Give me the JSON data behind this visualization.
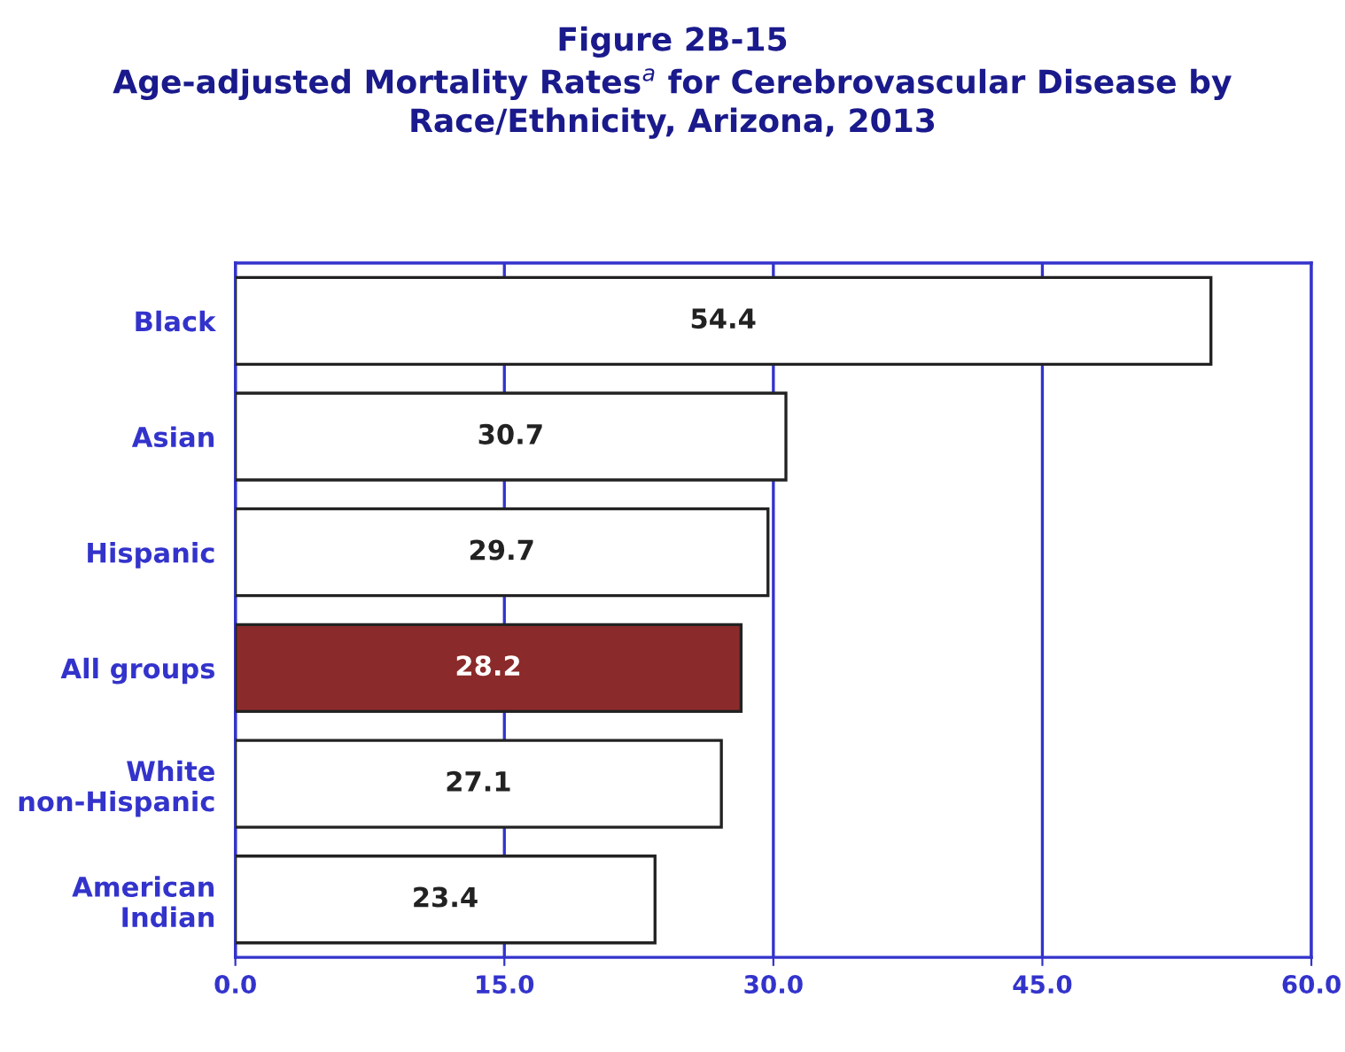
{
  "chart_data": {
    "type": "bar",
    "orientation": "horizontal",
    "title": "Figure 2B-15",
    "subtitle": "Age-adjusted Mortality Rates$^{a}$ for Cerebrovascular Disease by Race/Ethnicity, Arizona, 2013",
    "categories": [
      "Black",
      "Asian",
      "Hispanic",
      "All groups",
      "White\nnon-Hispanic",
      "American\nIndian"
    ],
    "values": [
      54.4,
      30.7,
      29.7,
      28.2,
      27.1,
      23.4
    ],
    "colors": [
      "#ffffff",
      "#ffffff",
      "#ffffff",
      "#8b2a2a",
      "#ffffff",
      "#ffffff"
    ],
    "xlim": [
      0,
      60
    ],
    "xticks": [
      {
        "value": 0,
        "label": "0.0"
      },
      {
        "value": 15,
        "label": "15.0"
      },
      {
        "value": 30,
        "label": "30.0"
      },
      {
        "value": 45,
        "label": "45.0"
      },
      {
        "value": 60,
        "label": "60.0"
      }
    ],
    "grid": "x",
    "data_labels": true
  }
}
